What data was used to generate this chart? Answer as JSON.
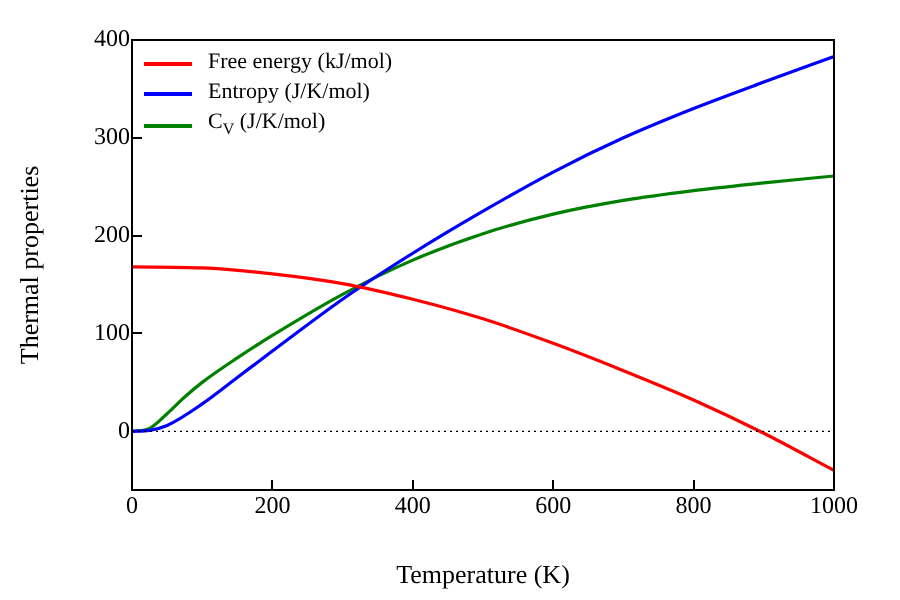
{
  "chart_data": {
    "type": "line",
    "xlabel": "Temperature (K)",
    "ylabel": "Thermal properties",
    "xlim": [
      0,
      1000
    ],
    "xticks": [
      0,
      200,
      400,
      600,
      800,
      1000
    ],
    "ylim": [
      -60,
      400
    ],
    "yticks": [
      0,
      100,
      200,
      300,
      400
    ],
    "grid": false,
    "legend": "top left",
    "marker": "none",
    "line_style": "solid",
    "ref_lines": [
      {
        "axis": "y",
        "value": 0,
        "color": "#000000",
        "line_style": "dotted"
      }
    ],
    "series": [
      {
        "name": "Free energy (kJ/mol)",
        "color": "#ff0000",
        "x": [
          0,
          100,
          200,
          300,
          400,
          500,
          600,
          700,
          800,
          900,
          1000
        ],
        "values": [
          168,
          167,
          161,
          151,
          135,
          115,
          90,
          62,
          32,
          -2,
          -40
        ]
      },
      {
        "name": "Entropy (J/K/mol)",
        "color": "#0000ff",
        "x": [
          0,
          25,
          50,
          100,
          150,
          200,
          300,
          400,
          500,
          600,
          700,
          800,
          900,
          1000
        ],
        "values": [
          0,
          1,
          6,
          28,
          55,
          82,
          135,
          182,
          225,
          265,
          300,
          330,
          357,
          383
        ]
      },
      {
        "name": "C$_{V}$ (J/K/mol)",
        "color": "#008000",
        "x": [
          0,
          25,
          50,
          75,
          100,
          150,
          200,
          300,
          400,
          500,
          600,
          700,
          800,
          900,
          1000
        ],
        "values": [
          0,
          3,
          18,
          35,
          50,
          75,
          98,
          140,
          175,
          202,
          222,
          236,
          246,
          254,
          261
        ]
      }
    ]
  }
}
